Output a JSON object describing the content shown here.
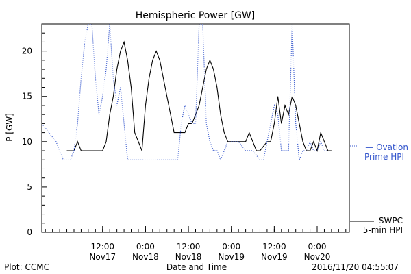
{
  "chart_data": {
    "type": "line",
    "title": "Hemispheric Power [GW]",
    "xlabel": "Date and Time",
    "ylabel": "P [GW]",
    "ylim": [
      0,
      23
    ],
    "xlim": [
      "2016-11-16 19:00",
      "2016-11-20 09:00"
    ],
    "yticks": [
      0,
      5,
      10,
      15,
      20
    ],
    "xticks": [
      {
        "t": "2016-11-17 12:00",
        "line1": "12:00",
        "line2": "Nov17"
      },
      {
        "t": "2016-11-18 00:00",
        "line1": "0:00",
        "line2": "Nov18"
      },
      {
        "t": "2016-11-18 12:00",
        "line1": "12:00",
        "line2": "Nov18"
      },
      {
        "t": "2016-11-19 00:00",
        "line1": "0:00",
        "line2": "Nov19"
      },
      {
        "t": "2016-11-19 12:00",
        "line1": "12:00",
        "line2": "Nov19"
      },
      {
        "t": "2016-11-20 00:00",
        "line1": "0:00",
        "line2": "Nov20"
      }
    ],
    "colors": {
      "ovation": "#3355cc",
      "swpc": "#000000"
    },
    "series": [
      {
        "name": "SWPC 5-min HPI",
        "style": "solid",
        "x": [
          "2016-11-17 02:00",
          "2016-11-17 03:00",
          "2016-11-17 04:00",
          "2016-11-17 05:00",
          "2016-11-17 06:00",
          "2016-11-17 07:00",
          "2016-11-17 08:00",
          "2016-11-17 09:00",
          "2016-11-17 10:00",
          "2016-11-17 11:00",
          "2016-11-17 12:00",
          "2016-11-17 13:00",
          "2016-11-17 14:00",
          "2016-11-17 15:00",
          "2016-11-17 16:00",
          "2016-11-17 17:00",
          "2016-11-17 18:00",
          "2016-11-17 19:00",
          "2016-11-17 20:00",
          "2016-11-17 21:00",
          "2016-11-17 22:00",
          "2016-11-17 23:00",
          "2016-11-18 00:00",
          "2016-11-18 01:00",
          "2016-11-18 02:00",
          "2016-11-18 03:00",
          "2016-11-18 04:00",
          "2016-11-18 05:00",
          "2016-11-18 06:00",
          "2016-11-18 07:00",
          "2016-11-18 08:00",
          "2016-11-18 09:00",
          "2016-11-18 10:00",
          "2016-11-18 11:00",
          "2016-11-18 12:00",
          "2016-11-18 13:00",
          "2016-11-18 14:00",
          "2016-11-18 15:00",
          "2016-11-18 16:00",
          "2016-11-18 17:00",
          "2016-11-18 18:00",
          "2016-11-18 19:00",
          "2016-11-18 20:00",
          "2016-11-18 21:00",
          "2016-11-18 22:00",
          "2016-11-18 23:00",
          "2016-11-19 00:00",
          "2016-11-19 02:00",
          "2016-11-19 04:00",
          "2016-11-19 05:00",
          "2016-11-19 06:00",
          "2016-11-19 07:00",
          "2016-11-19 08:00",
          "2016-11-19 10:00",
          "2016-11-19 11:00",
          "2016-11-19 12:00",
          "2016-11-19 13:00",
          "2016-11-19 14:00",
          "2016-11-19 15:00",
          "2016-11-19 16:00",
          "2016-11-19 17:00",
          "2016-11-19 18:00",
          "2016-11-19 19:00",
          "2016-11-19 20:00",
          "2016-11-19 21:00",
          "2016-11-19 22:00",
          "2016-11-19 23:00",
          "2016-11-20 00:00",
          "2016-11-20 01:00",
          "2016-11-20 02:00",
          "2016-11-20 03:00",
          "2016-11-20 04:00"
        ],
        "y": [
          9,
          9,
          9,
          10,
          9,
          9,
          9,
          9,
          9,
          9,
          9,
          10,
          13,
          15,
          18,
          20,
          21,
          19,
          16,
          11,
          10,
          9,
          14,
          17,
          19,
          20,
          19,
          17,
          15,
          13,
          11,
          11,
          11,
          11,
          12,
          12,
          13,
          14,
          16,
          18,
          19,
          18,
          16,
          13,
          11,
          10,
          10,
          10,
          10,
          11,
          10,
          9,
          9,
          10,
          10,
          12,
          15,
          12,
          14,
          13,
          15,
          14,
          12,
          10,
          9,
          9,
          10,
          9,
          11,
          10,
          9,
          9
        ]
      },
      {
        "name": "Ovation Prime HPI",
        "style": "dotted",
        "x": [
          "2016-11-16 19:00",
          "2016-11-16 21:00",
          "2016-11-16 23:00",
          "2016-11-17 00:00",
          "2016-11-17 01:00",
          "2016-11-17 02:00",
          "2016-11-17 03:00",
          "2016-11-17 04:00",
          "2016-11-17 05:00",
          "2016-11-17 06:00",
          "2016-11-17 07:00",
          "2016-11-17 08:00",
          "2016-11-17 09:00",
          "2016-11-17 10:00",
          "2016-11-17 11:00",
          "2016-11-17 12:00",
          "2016-11-17 13:00",
          "2016-11-17 14:00",
          "2016-11-17 15:00",
          "2016-11-17 16:00",
          "2016-11-17 17:00",
          "2016-11-17 18:00",
          "2016-11-17 19:00",
          "2016-11-17 20:00",
          "2016-11-17 21:00",
          "2016-11-17 22:00",
          "2016-11-17 23:00",
          "2016-11-18 00:00",
          "2016-11-18 03:00",
          "2016-11-18 06:00",
          "2016-11-18 09:00",
          "2016-11-18 10:00",
          "2016-11-18 11:00",
          "2016-11-18 12:00",
          "2016-11-18 13:00",
          "2016-11-18 14:00",
          "2016-11-18 15:00",
          "2016-11-18 16:00",
          "2016-11-18 17:00",
          "2016-11-18 18:00",
          "2016-11-18 19:00",
          "2016-11-18 20:00",
          "2016-11-18 21:00",
          "2016-11-18 22:00",
          "2016-11-18 23:00",
          "2016-11-19 00:00",
          "2016-11-19 02:00",
          "2016-11-19 04:00",
          "2016-11-19 06:00",
          "2016-11-19 08:00",
          "2016-11-19 09:00",
          "2016-11-19 10:00",
          "2016-11-19 11:00",
          "2016-11-19 12:00",
          "2016-11-19 13:00",
          "2016-11-19 14:00",
          "2016-11-19 15:00",
          "2016-11-19 16:00",
          "2016-11-19 17:00",
          "2016-11-19 18:00",
          "2016-11-19 19:00",
          "2016-11-19 20:00",
          "2016-11-19 21:00",
          "2016-11-19 22:00",
          "2016-11-19 23:00",
          "2016-11-20 00:00",
          "2016-11-20 01:00",
          "2016-11-20 02:00",
          "2016-11-20 03:00"
        ],
        "y": [
          12,
          11,
          10,
          9,
          8,
          8,
          8,
          9,
          12,
          17,
          21,
          23,
          23,
          17,
          13,
          15,
          18,
          23,
          17,
          14,
          16,
          12,
          8,
          8,
          8,
          8,
          8,
          8,
          8,
          8,
          8,
          12,
          14,
          13,
          12,
          12,
          23,
          23,
          12,
          10,
          9,
          9,
          8,
          9,
          10,
          10,
          10,
          9,
          9,
          8,
          8,
          10,
          12,
          14,
          13,
          9,
          9,
          9,
          23,
          12,
          8,
          9,
          9,
          10,
          9,
          9,
          10,
          9,
          9
        ]
      }
    ],
    "legend": [
      {
        "series": "Ovation Prime HPI",
        "line1": "— Ovation",
        "line2": "Prime HPI"
      },
      {
        "series": "SWPC 5-min HPI",
        "line1": "SWPC",
        "line2": "5-min HPI"
      }
    ],
    "legend_position": "right",
    "grid": false
  },
  "footer": {
    "left": "Plot: CCMC",
    "right": "2016/11/20 04:55:07"
  }
}
